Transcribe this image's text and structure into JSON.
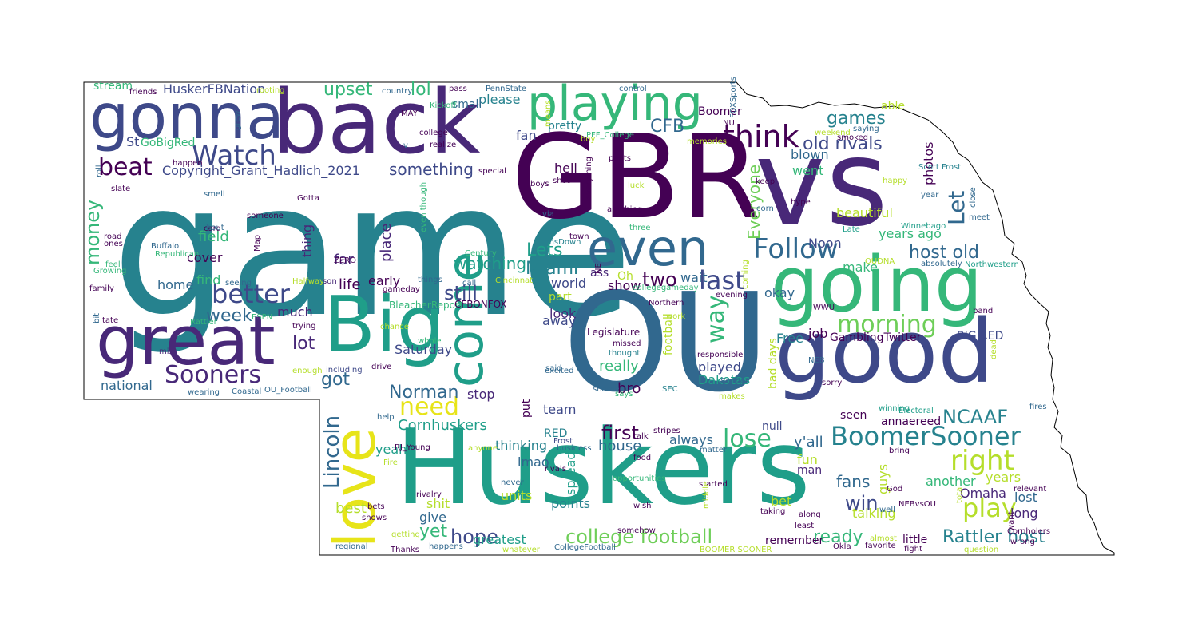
{
  "palette": {
    "dark_purple": "#440154",
    "purple": "#482878",
    "indigo": "#3e4989",
    "blue": "#31688e",
    "teal": "#26828e",
    "teal_green": "#1f9e89",
    "green": "#35b779",
    "light_green": "#6ece58",
    "lime": "#b5de2b",
    "yellow": "#e7e419"
  },
  "words": [
    {
      "text": "game",
      "color": "#26828e"
    },
    {
      "text": "GBR",
      "color": "#440154"
    },
    {
      "text": "vs",
      "color": "#482878"
    },
    {
      "text": "OU",
      "color": "#31688e"
    },
    {
      "text": "back",
      "color": "#482878"
    },
    {
      "text": "Huskers",
      "color": "#1f9e89"
    },
    {
      "text": "good",
      "color": "#3e4989"
    },
    {
      "text": "going",
      "color": "#35b779"
    },
    {
      "text": "Big",
      "color": "#1f9e89"
    },
    {
      "text": "great",
      "color": "#482878"
    },
    {
      "text": "gonna",
      "color": "#3e4989"
    },
    {
      "text": "playing",
      "color": "#35b779"
    },
    {
      "text": "even",
      "color": "#31688e"
    },
    {
      "text": "love",
      "color": "#e7e419"
    },
    {
      "text": "come",
      "color": "#1f9e89"
    },
    {
      "text": "Follow",
      "color": "#31688e"
    },
    {
      "text": "think",
      "color": "#440154"
    },
    {
      "text": "Watch",
      "color": "#3e4989"
    },
    {
      "text": "beat",
      "color": "#440154"
    },
    {
      "text": "better",
      "color": "#3e4989"
    },
    {
      "text": "Sooners",
      "color": "#482878"
    },
    {
      "text": "last",
      "color": "#3e4989"
    },
    {
      "text": "BoomerSooner",
      "color": "#26828e"
    },
    {
      "text": "right",
      "color": "#b5de2b"
    },
    {
      "text": "play",
      "color": "#b5de2b"
    },
    {
      "text": "lose",
      "color": "#35b779"
    },
    {
      "text": "need",
      "color": "#e7e419"
    },
    {
      "text": "morning",
      "color": "#6ece58"
    },
    {
      "text": "college football",
      "color": "#6ece58"
    },
    {
      "text": "Rattler host",
      "color": "#26828e"
    },
    {
      "text": "old rivals",
      "color": "#3e4989"
    },
    {
      "text": "host old",
      "color": "#31688e"
    },
    {
      "text": "Lincoln",
      "color": "#31688e"
    },
    {
      "text": "NCAAF",
      "color": "#26828e"
    },
    {
      "text": "money",
      "color": "#35b779"
    },
    {
      "text": "Let",
      "color": "#31688e"
    },
    {
      "text": "Everyone",
      "color": "#6ece58"
    },
    {
      "text": "way",
      "color": "#35b779"
    },
    {
      "text": "week",
      "color": "#31688e"
    },
    {
      "text": "Miami",
      "color": "#26828e"
    },
    {
      "text": "Norman",
      "color": "#31688e"
    },
    {
      "text": "watching",
      "color": "#1f9e89"
    },
    {
      "text": "upset",
      "color": "#35b779"
    },
    {
      "text": "CFB",
      "color": "#31688e"
    },
    {
      "text": "games",
      "color": "#26828e"
    },
    {
      "text": "something",
      "color": "#3e4989"
    },
    {
      "text": "Copyright_Grant_Hadlich_2021",
      "color": "#3e4989"
    },
    {
      "text": "first",
      "color": "#440154"
    },
    {
      "text": "hope",
      "color": "#3e4989"
    },
    {
      "text": "yet",
      "color": "#35b779"
    },
    {
      "text": "win",
      "color": "#3e4989"
    },
    {
      "text": "fans",
      "color": "#31688e"
    },
    {
      "text": "ready",
      "color": "#35b779"
    },
    {
      "text": "still",
      "color": "#3e4989"
    },
    {
      "text": "two",
      "color": "#440154"
    },
    {
      "text": "lot",
      "color": "#482878"
    },
    {
      "text": "got",
      "color": "#31688e"
    },
    {
      "text": "lol",
      "color": "#35b779"
    },
    {
      "text": "Lets",
      "color": "#1f9e89"
    },
    {
      "text": "years ago",
      "color": "#35b779"
    },
    {
      "text": "y'all",
      "color": "#31688e"
    },
    {
      "text": "HuskerFBNation",
      "color": "#3e4989"
    },
    {
      "text": "stream",
      "color": "#35b779"
    },
    {
      "text": "GoBigRed",
      "color": "#35b779"
    },
    {
      "text": "St",
      "color": "#3e4989"
    },
    {
      "text": "field",
      "color": "#35b779"
    },
    {
      "text": "cover",
      "color": "#440154"
    },
    {
      "text": "find",
      "color": "#35b779"
    },
    {
      "text": "home",
      "color": "#31688e"
    },
    {
      "text": "thing",
      "color": "#482878"
    },
    {
      "text": "far",
      "color": "#482878"
    },
    {
      "text": "place",
      "color": "#482878"
    },
    {
      "text": "life",
      "color": "#440154"
    },
    {
      "text": "much",
      "color": "#482878"
    },
    {
      "text": "early",
      "color": "#440154"
    },
    {
      "text": "Saturday",
      "color": "#3e4989"
    },
    {
      "text": "national",
      "color": "#31688e"
    },
    {
      "text": "stop",
      "color": "#482878"
    },
    {
      "text": "Cornhuskers",
      "color": "#1f9e89"
    },
    {
      "text": "thinking",
      "color": "#26828e"
    },
    {
      "text": "lmao",
      "color": "#31688e"
    },
    {
      "text": "yeah",
      "color": "#1f9e89"
    },
    {
      "text": "best",
      "color": "#b5de2b"
    },
    {
      "text": "shit",
      "color": "#b5de2b"
    },
    {
      "text": "units",
      "color": "#b5de2b"
    },
    {
      "text": "give",
      "color": "#31688e"
    },
    {
      "text": "greatest",
      "color": "#1f9e89"
    },
    {
      "text": "points",
      "color": "#26828e"
    },
    {
      "text": "spread",
      "color": "#1f9e89"
    },
    {
      "text": "house",
      "color": "#31688e"
    },
    {
      "text": "team",
      "color": "#3e4989"
    },
    {
      "text": "really",
      "color": "#35b779"
    },
    {
      "text": "bro",
      "color": "#440154"
    },
    {
      "text": "always",
      "color": "#31688e"
    },
    {
      "text": "played",
      "color": "#3e4989"
    },
    {
      "text": "Dakotas",
      "color": "#1f9e89"
    },
    {
      "text": "wait",
      "color": "#31688e"
    },
    {
      "text": "show",
      "color": "#440154"
    },
    {
      "text": "away",
      "color": "#3e4989"
    },
    {
      "text": "look",
      "color": "#482878"
    },
    {
      "text": "part",
      "color": "#b5de2b"
    },
    {
      "text": "world",
      "color": "#3e4989"
    },
    {
      "text": "pretty",
      "color": "#26828e"
    },
    {
      "text": "hell",
      "color": "#440154"
    },
    {
      "text": "fan",
      "color": "#3e4989"
    },
    {
      "text": "please",
      "color": "#26828e"
    },
    {
      "text": "small",
      "color": "#31688e"
    },
    {
      "text": "Boomer",
      "color": "#440154"
    },
    {
      "text": "okay",
      "color": "#31688e"
    },
    {
      "text": "make",
      "color": "#35b779"
    },
    {
      "text": "beautiful",
      "color": "#b5de2b"
    },
    {
      "text": "Noon",
      "color": "#3e4989"
    },
    {
      "text": "went",
      "color": "#35b779"
    },
    {
      "text": "blown",
      "color": "#31688e"
    },
    {
      "text": "photos",
      "color": "#440154"
    },
    {
      "text": "Free",
      "color": "#26828e"
    },
    {
      "text": "job",
      "color": "#440154"
    },
    {
      "text": "GamblingTwitter",
      "color": "#440154"
    },
    {
      "text": "BIG RED",
      "color": "#3e4989"
    },
    {
      "text": "annaereed",
      "color": "#440154"
    },
    {
      "text": "seen",
      "color": "#440154"
    },
    {
      "text": "null",
      "color": "#3e4989"
    },
    {
      "text": "fun",
      "color": "#b5de2b"
    },
    {
      "text": "man",
      "color": "#482878"
    },
    {
      "text": "another",
      "color": "#35b779"
    },
    {
      "text": "years",
      "color": "#b5de2b"
    },
    {
      "text": "Omaha",
      "color": "#482878"
    },
    {
      "text": "guys",
      "color": "#b5de2b"
    },
    {
      "text": "lost",
      "color": "#31688e"
    },
    {
      "text": "long",
      "color": "#482878"
    },
    {
      "text": "bet",
      "color": "#b5de2b"
    },
    {
      "text": "talking",
      "color": "#b5de2b"
    },
    {
      "text": "remember",
      "color": "#440154"
    },
    {
      "text": "little",
      "color": "#440154"
    },
    {
      "text": "bad days",
      "color": "#b5de2b"
    },
    {
      "text": "football",
      "color": "#b5de2b"
    },
    {
      "text": "put",
      "color": "#440154"
    },
    {
      "text": "RED",
      "color": "#26828e"
    },
    {
      "text": "RJ_Young",
      "color": "#440154"
    },
    {
      "text": "BleacherReport",
      "color": "#35b779"
    },
    {
      "text": "CFBONFOX",
      "color": "#440154"
    },
    {
      "text": "Legislature",
      "color": "#440154"
    },
    {
      "text": "Oh",
      "color": "#b5de2b"
    },
    {
      "text": "ass",
      "color": "#482878"
    },
    {
      "text": "Scott Frost",
      "color": "#26828e"
    },
    {
      "text": "Winnebago",
      "color": "#1f9e89"
    },
    {
      "text": "Northern",
      "color": "#440154"
    },
    {
      "text": "WWU",
      "color": "#440154"
    },
    {
      "text": "Okla",
      "color": "#440154"
    },
    {
      "text": "Cornholers",
      "color": "#440154"
    },
    {
      "text": "Electoral",
      "color": "#1f9e89"
    },
    {
      "text": "winning",
      "color": "#1f9e89"
    },
    {
      "text": "Frost",
      "color": "#3e4989"
    },
    {
      "text": "business",
      "color": "#31688e"
    },
    {
      "text": "CollegeFootball",
      "color": "#31688e"
    },
    {
      "text": "BOOMER SOONER",
      "color": "#b5de2b"
    },
    {
      "text": "whatever",
      "color": "#b5de2b"
    },
    {
      "text": "Thanks",
      "color": "#440154"
    },
    {
      "text": "regional",
      "color": "#31688e"
    },
    {
      "text": "happens",
      "color": "#31688e"
    },
    {
      "text": "getting",
      "color": "#b5de2b"
    },
    {
      "text": "Coastal",
      "color": "#31688e"
    },
    {
      "text": "wearing",
      "color": "#31688e"
    },
    {
      "text": "OU_Football",
      "color": "#31688e"
    },
    {
      "text": "including",
      "color": "#3e4989"
    },
    {
      "text": "enough",
      "color": "#b5de2b"
    },
    {
      "text": "drive",
      "color": "#440154"
    },
    {
      "text": "Rattler",
      "color": "#35b779"
    },
    {
      "text": "tate",
      "color": "#440154"
    },
    {
      "text": "ESPN",
      "color": "#35b779"
    },
    {
      "text": "miss",
      "color": "#482878"
    },
    {
      "text": "trying",
      "color": "#440154"
    },
    {
      "text": "chance",
      "color": "#b5de2b"
    },
    {
      "text": "whole",
      "color": "#35b779"
    },
    {
      "text": "excited",
      "color": "#31688e"
    },
    {
      "text": "shame",
      "color": "#31688e"
    },
    {
      "text": "said",
      "color": "#31688e"
    },
    {
      "text": "says",
      "color": "#35b779"
    },
    {
      "text": "missed",
      "color": "#440154"
    },
    {
      "text": "thought",
      "color": "#26828e"
    },
    {
      "text": "SEC",
      "color": "#26828e"
    },
    {
      "text": "Sooner",
      "color": "#31688e"
    },
    {
      "text": "makes",
      "color": "#b5de2b"
    },
    {
      "text": "responsible",
      "color": "#440154"
    },
    {
      "text": "NEB",
      "color": "#31688e"
    },
    {
      "text": "sorry",
      "color": "#440154"
    },
    {
      "text": "fires",
      "color": "#31688e"
    },
    {
      "text": "Century",
      "color": "#35b779"
    },
    {
      "text": "Cincinnati",
      "color": "#b5de2b"
    },
    {
      "text": "gameday",
      "color": "#440154"
    },
    {
      "text": "things",
      "color": "#31688e"
    },
    {
      "text": "call",
      "color": "#31688e"
    },
    {
      "text": "Halfway",
      "color": "#b5de2b"
    },
    {
      "text": "son",
      "color": "#482878"
    },
    {
      "text": "seeing",
      "color": "#31688e"
    },
    {
      "text": "ZERO",
      "color": "#440154"
    },
    {
      "text": "Map",
      "color": "#440154"
    },
    {
      "text": "Republican",
      "color": "#35b779"
    },
    {
      "text": "Buffalo",
      "color": "#31688e"
    },
    {
      "text": "road",
      "color": "#440154"
    },
    {
      "text": "ones",
      "color": "#440154"
    },
    {
      "text": "feel",
      "color": "#35b779"
    },
    {
      "text": "Growing",
      "color": "#35b779"
    },
    {
      "text": "family",
      "color": "#440154"
    },
    {
      "text": "bit",
      "color": "#31688e"
    },
    {
      "text": "card",
      "color": "#440154"
    },
    {
      "text": "bout",
      "color": "#31688e"
    },
    {
      "text": "someone",
      "color": "#440154"
    },
    {
      "text": "Gotta",
      "color": "#440154"
    },
    {
      "text": "smell",
      "color": "#31688e"
    },
    {
      "text": "slate",
      "color": "#440154"
    },
    {
      "text": "happen",
      "color": "#440154"
    },
    {
      "text": "friends",
      "color": "#440154"
    },
    {
      "text": "rooting",
      "color": "#b5de2b"
    },
    {
      "text": "country",
      "color": "#31688e"
    },
    {
      "text": "MAY",
      "color": "#440154"
    },
    {
      "text": "Kickoff",
      "color": "#35b779"
    },
    {
      "text": "college",
      "color": "#440154"
    },
    {
      "text": "realize",
      "color": "#440154"
    },
    {
      "text": "special",
      "color": "#440154"
    },
    {
      "text": "PennState",
      "color": "#31688e"
    },
    {
      "text": "pass",
      "color": "#440154"
    },
    {
      "text": "PFF_College",
      "color": "#35b779"
    },
    {
      "text": "boy",
      "color": "#b5de2b"
    },
    {
      "text": "shot",
      "color": "#440154"
    },
    {
      "text": "boys",
      "color": "#440154"
    },
    {
      "text": "via",
      "color": "#31688e"
    },
    {
      "text": "town",
      "color": "#440154"
    },
    {
      "text": "HornsDown",
      "color": "#26828e"
    },
    {
      "text": "control",
      "color": "#31688e"
    },
    {
      "text": "means",
      "color": "#b5de2b"
    },
    {
      "text": "pants",
      "color": "#440154"
    },
    {
      "text": "luck",
      "color": "#b5de2b"
    },
    {
      "text": "anything",
      "color": "#440154"
    },
    {
      "text": "three",
      "color": "#35b779"
    },
    {
      "text": "memories",
      "color": "#b5de2b"
    },
    {
      "text": "NU",
      "color": "#440154"
    },
    {
      "text": "weekend",
      "color": "#b5de2b"
    },
    {
      "text": "saying",
      "color": "#31688e"
    },
    {
      "text": "smoked",
      "color": "#440154"
    },
    {
      "text": "keep",
      "color": "#440154"
    },
    {
      "text": "hype",
      "color": "#440154"
    },
    {
      "text": "corn",
      "color": "#31688e"
    },
    {
      "text": "happy",
      "color": "#b5de2b"
    },
    {
      "text": "year",
      "color": "#31688e"
    },
    {
      "text": "meet",
      "color": "#31688e"
    },
    {
      "text": "Late",
      "color": "#1f9e89"
    },
    {
      "text": "OUDNA",
      "color": "#b5de2b"
    },
    {
      "text": "absolutely",
      "color": "#31688e"
    },
    {
      "text": "Northwestern",
      "color": "#1f9e89"
    },
    {
      "text": "evening",
      "color": "#440154"
    },
    {
      "text": "band",
      "color": "#440154"
    },
    {
      "text": "collegegameday",
      "color": "#35b779"
    },
    {
      "text": "matter",
      "color": "#31688e"
    },
    {
      "text": "food",
      "color": "#440154"
    },
    {
      "text": "talk",
      "color": "#440154"
    },
    {
      "text": "stripes",
      "color": "#440154"
    },
    {
      "text": "opportunities",
      "color": "#35b779"
    },
    {
      "text": "started",
      "color": "#440154"
    },
    {
      "text": "wish",
      "color": "#440154"
    },
    {
      "text": "somehow",
      "color": "#440154"
    },
    {
      "text": "never",
      "color": "#31688e"
    },
    {
      "text": "rivals",
      "color": "#440154"
    },
    {
      "text": "rivalry",
      "color": "#440154"
    },
    {
      "text": "bets",
      "color": "#440154"
    },
    {
      "text": "shows",
      "color": "#440154"
    },
    {
      "text": "anyone",
      "color": "#b5de2b"
    },
    {
      "text": "Fire",
      "color": "#b5de2b"
    },
    {
      "text": "help",
      "color": "#31688e"
    },
    {
      "text": "God",
      "color": "#440154"
    },
    {
      "text": "well",
      "color": "#31688e"
    },
    {
      "text": "NEBvsOU",
      "color": "#440154"
    },
    {
      "text": "relevant",
      "color": "#440154"
    },
    {
      "text": "taking",
      "color": "#440154"
    },
    {
      "text": "along",
      "color": "#440154"
    },
    {
      "text": "least",
      "color": "#440154"
    },
    {
      "text": "almost",
      "color": "#b5de2b"
    },
    {
      "text": "favorite",
      "color": "#440154"
    },
    {
      "text": "fight",
      "color": "#440154"
    },
    {
      "text": "question",
      "color": "#b5de2b"
    },
    {
      "text": "bring",
      "color": "#440154"
    },
    {
      "text": "want",
      "color": "#440154"
    },
    {
      "text": "wrong",
      "color": "#440154"
    },
    {
      "text": "middle",
      "color": "#b5de2b"
    },
    {
      "text": "coming",
      "color": "#b5de2b"
    },
    {
      "text": "work",
      "color": "#b5de2b"
    },
    {
      "text": "close",
      "color": "#31688e"
    },
    {
      "text": "total",
      "color": "#b5de2b"
    },
    {
      "text": "dead",
      "color": "#b5de2b"
    },
    {
      "text": "grew",
      "color": "#31688e"
    },
    {
      "text": "FOXSports",
      "color": "#31688e"
    },
    {
      "text": "roll",
      "color": "#31688e"
    },
    {
      "text": "even though",
      "color": "#35b779"
    },
    {
      "text": "everything",
      "color": "#440154"
    },
    {
      "text": "NE",
      "color": "#440154"
    },
    {
      "text": "able",
      "color": "#b5de2b"
    },
    {
      "text": "v",
      "color": "#31688e"
    }
  ]
}
